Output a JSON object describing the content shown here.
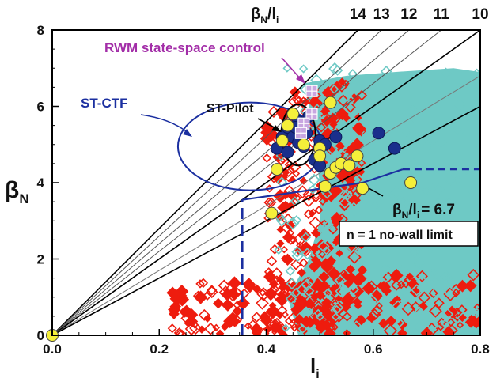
{
  "chart_data": {
    "type": "scatter",
    "title": "",
    "xlabel": "l",
    "xlabel_sub": "i",
    "ylabel": "β",
    "ylabel_sub": "N",
    "xlim": [
      0,
      0.8
    ],
    "ylim": [
      0,
      8
    ],
    "xticks": [
      {
        "value": 0.0,
        "label": "0.0"
      },
      {
        "value": 0.2,
        "label": "0.2"
      },
      {
        "value": 0.4,
        "label": "0.4"
      },
      {
        "value": 0.6,
        "label": "0.6"
      },
      {
        "value": 0.8,
        "label": "0.8"
      }
    ],
    "yticks": [
      {
        "value": 0,
        "label": "0"
      },
      {
        "value": 2,
        "label": "2"
      },
      {
        "value": 4,
        "label": "4"
      },
      {
        "value": 6,
        "label": "6"
      },
      {
        "value": 8,
        "label": "8"
      }
    ],
    "ratio_lines": {
      "header": {
        "main": "β",
        "sub1": "N",
        "mid": "/l",
        "sub2": "i"
      },
      "lines": [
        {
          "slope": 14,
          "label": "14",
          "color": "#000000"
        },
        {
          "slope": 13,
          "label": "13",
          "color": "#555555"
        },
        {
          "slope": 12,
          "label": "12",
          "color": "#555555"
        },
        {
          "slope": 11,
          "label": "11",
          "color": "#555555"
        },
        {
          "slope": 10,
          "label": "10",
          "color": "#000000"
        },
        {
          "slope": 8.5,
          "label": "",
          "color": "#777777"
        },
        {
          "slope": 7.5,
          "label": "",
          "color": "#000000"
        }
      ]
    },
    "colors": {
      "cloud_red": "#ee1c0e",
      "cloud_cyan": "#6ec9c5",
      "marker_navy": "#1a2f8c",
      "marker_yellow": "#f5ef3a",
      "marker_lilac": "#c8a6e0",
      "ellipse": "#1b2fa0",
      "wall_limit": "#1b2fa0",
      "rwm_text": "#a32ea8",
      "st_ctf_text": "#1b2fa0"
    },
    "series": [
      {
        "marker": "circle-navy",
        "points": [
          [
            0.42,
            4.9
          ],
          [
            0.43,
            5.2
          ],
          [
            0.44,
            5.45
          ],
          [
            0.45,
            5.2
          ],
          [
            0.46,
            5.6
          ],
          [
            0.47,
            4.95
          ],
          [
            0.475,
            5.3
          ],
          [
            0.48,
            5.75
          ],
          [
            0.49,
            4.6
          ],
          [
            0.5,
            5.1
          ],
          [
            0.53,
            5.2
          ],
          [
            0.61,
            5.3
          ],
          [
            0.64,
            4.9
          ],
          [
            0.44,
            4.8
          ],
          [
            0.5,
            4.45
          ],
          [
            0.46,
            5.05
          ],
          [
            0.455,
            5.45
          ],
          [
            0.51,
            5.0
          ]
        ]
      },
      {
        "marker": "circle-yellow",
        "points": [
          [
            0.0,
            0.0
          ],
          [
            0.41,
            3.2
          ],
          [
            0.42,
            4.35
          ],
          [
            0.43,
            5.1
          ],
          [
            0.44,
            5.5
          ],
          [
            0.45,
            5.8
          ],
          [
            0.47,
            5.0
          ],
          [
            0.5,
            4.9
          ],
          [
            0.51,
            3.9
          ],
          [
            0.52,
            4.25
          ],
          [
            0.53,
            4.4
          ],
          [
            0.54,
            4.5
          ],
          [
            0.555,
            4.45
          ],
          [
            0.57,
            4.7
          ],
          [
            0.58,
            3.85
          ],
          [
            0.67,
            4.0
          ],
          [
            0.52,
            6.1
          ],
          [
            0.5,
            4.7
          ]
        ]
      },
      {
        "marker": "square-lilac",
        "points": [
          [
            0.485,
            6.4
          ],
          [
            0.485,
            5.8
          ],
          [
            0.47,
            5.55
          ],
          [
            0.465,
            5.3
          ]
        ]
      }
    ],
    "st_pilot_ellipse": {
      "cx": 0.46,
      "cy": 5.25,
      "rx": 0.032,
      "ry": 0.8
    },
    "st_ctf_ellipse": {
      "cx": 0.37,
      "cy": 4.95,
      "rx": 0.135,
      "ry": 1.15
    },
    "wall_limit": {
      "points": [
        [
          0.355,
          0
        ],
        [
          0.355,
          3.55
        ],
        [
          0.58,
          4.0
        ],
        [
          0.655,
          4.35
        ],
        [
          0.8,
          4.35
        ]
      ],
      "dashed_segments": [
        [
          0,
          1
        ],
        [
          3,
          4
        ]
      ]
    },
    "annotations": {
      "rwm": "RWM state-space control",
      "st_ctf": "ST-CTF",
      "st_pilot": "ST-Pilot",
      "ratio_label": {
        "main": "β",
        "sub1": "N",
        "mid": "/l",
        "sub2": "i",
        "tail": "= 6.7"
      },
      "legend_box": "n = 1 no-wall limit"
    }
  }
}
